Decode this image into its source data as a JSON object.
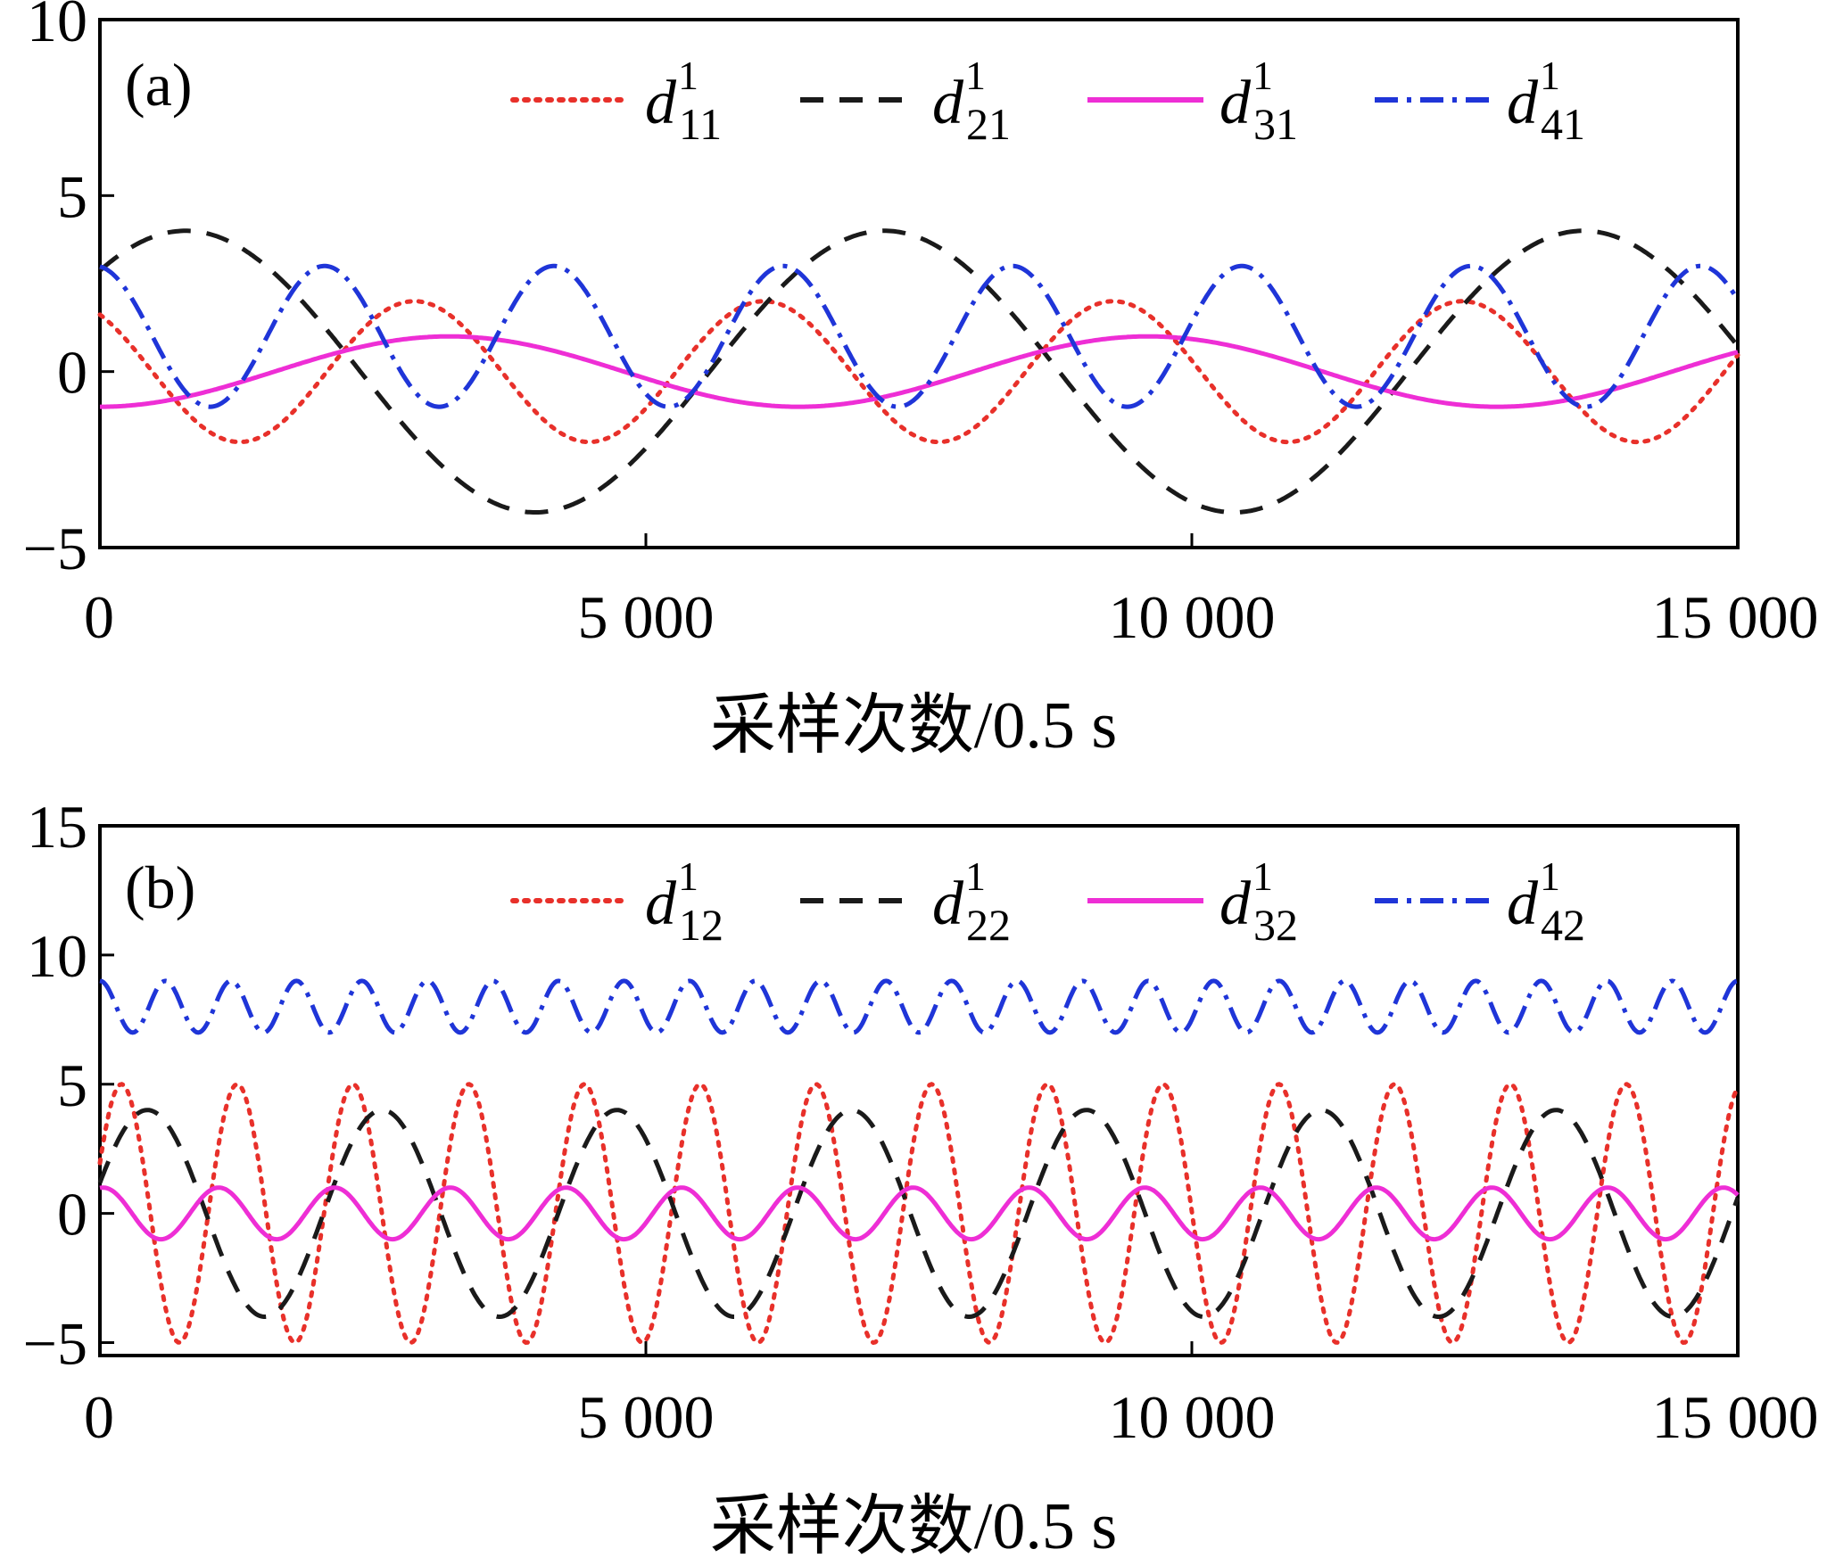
{
  "chart_data": [
    {
      "type": "line",
      "panel_label": "(a)",
      "xlabel": "采样次数/0.5 s",
      "ylabel": "",
      "xlim": [
        0,
        15000
      ],
      "ylim": [
        -5,
        10
      ],
      "x_ticks": [
        0,
        5000,
        10000,
        15000
      ],
      "x_tick_labels": [
        "0",
        "5 000",
        "10 000",
        "15 000"
      ],
      "y_ticks": [
        -5,
        0,
        5,
        10
      ],
      "y_tick_labels": [
        "−5",
        "0",
        "5",
        "10"
      ],
      "legend_position": "top-right",
      "series": [
        {
          "name": "d",
          "sup": "1",
          "sub": "11",
          "color": "#e8302a",
          "style": "dotted",
          "amplitude": 2,
          "offset": 0,
          "period": 3200,
          "phase_at_zero": 2.2
        },
        {
          "name": "d",
          "sup": "1",
          "sub": "21",
          "color": "#1a1a1a",
          "style": "dashed",
          "amplitude": 4,
          "offset": 0,
          "period": 6400,
          "phase_at_zero": 0.8
        },
        {
          "name": "d",
          "sup": "1",
          "sub": "31",
          "color": "#ee2ed5",
          "style": "solid",
          "amplitude": 1,
          "offset": 0,
          "period": 6400,
          "phase_at_zero": -1.57
        },
        {
          "name": "d",
          "sup": "1",
          "sub": "41",
          "color": "#1f35d8",
          "style": "dash-dot",
          "amplitude": 2,
          "offset": 1,
          "period": 2100,
          "phase_at_zero": 1.7
        }
      ]
    },
    {
      "type": "line",
      "panel_label": "(b)",
      "xlabel": "采样次数/0.5 s",
      "ylabel": "",
      "xlim": [
        0,
        15000
      ],
      "ylim": [
        -5.5,
        15
      ],
      "x_ticks": [
        0,
        5000,
        10000,
        15000
      ],
      "x_tick_labels": [
        "0",
        "5 000",
        "10 000",
        "15 000"
      ],
      "y_ticks": [
        -5,
        0,
        5,
        10,
        15
      ],
      "y_tick_labels": [
        "−5",
        "0",
        "5",
        "10",
        "15"
      ],
      "legend_position": "top-right",
      "series": [
        {
          "name": "d",
          "sup": "1",
          "sub": "12",
          "color": "#e8302a",
          "style": "dotted",
          "amplitude": 5,
          "offset": 0,
          "period": 1060,
          "phase_at_zero": 0.4
        },
        {
          "name": "d",
          "sup": "1",
          "sub": "22",
          "color": "#1a1a1a",
          "style": "dashed",
          "amplitude": 4,
          "offset": 0,
          "period": 2150,
          "phase_at_zero": 0.3
        },
        {
          "name": "d",
          "sup": "1",
          "sub": "32",
          "color": "#ee2ed5",
          "style": "solid",
          "amplitude": 1,
          "offset": 0,
          "period": 1060,
          "phase_at_zero": 1.4
        },
        {
          "name": "d",
          "sup": "1",
          "sub": "42",
          "color": "#1f35d8",
          "style": "dash-dot",
          "amplitude": 1,
          "offset": 8,
          "period": 600,
          "phase_at_zero": 1.57
        }
      ]
    }
  ]
}
